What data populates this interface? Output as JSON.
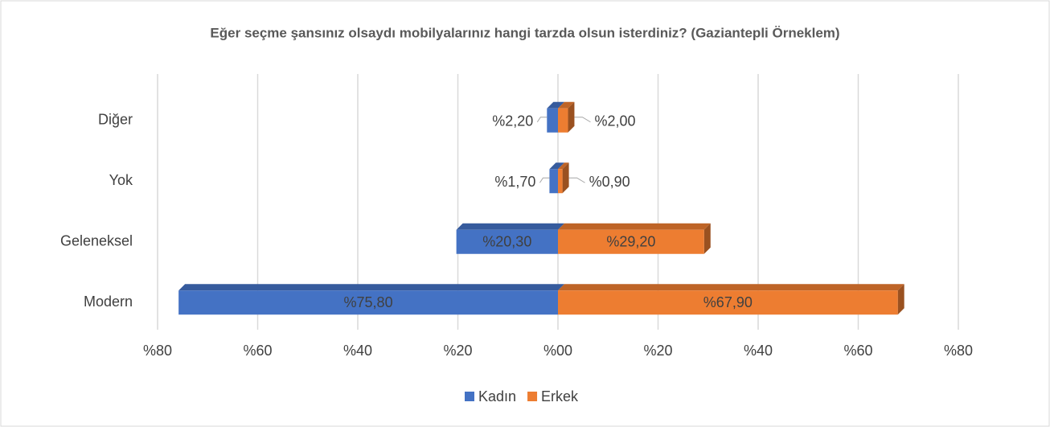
{
  "chart_data": {
    "type": "butterfly-bar",
    "title": "Eğer seçme şansınız olsaydı mobilyalarınız hangi tarzda olsun isterdiniz? (Gaziantepli Örneklem)",
    "categories": [
      "Modern",
      "Geleneksel",
      "Yok",
      "Diğer"
    ],
    "series": [
      {
        "name": "Kadın",
        "color": "#4472c4",
        "values": [
          -75.8,
          -20.3,
          -1.7,
          -2.2
        ],
        "value_labels": [
          "%75,80",
          "%20,30",
          "%1,70",
          "%2,20"
        ]
      },
      {
        "name": "Erkek",
        "color": "#ed7d31",
        "values": [
          67.9,
          29.2,
          0.9,
          2.0
        ],
        "value_labels": [
          "%67,90",
          "%29,20",
          "%0,90",
          "%2,00"
        ]
      }
    ],
    "xlim": [
      -80,
      80
    ],
    "xticks": [
      {
        "value": -80,
        "label": "%80"
      },
      {
        "value": -60,
        "label": "%60"
      },
      {
        "value": -40,
        "label": "%40"
      },
      {
        "value": -20,
        "label": "%20"
      },
      {
        "value": 0,
        "label": "%00"
      },
      {
        "value": 20,
        "label": "%20"
      },
      {
        "value": 40,
        "label": "%40"
      },
      {
        "value": 60,
        "label": "%60"
      },
      {
        "value": 80,
        "label": "%80"
      }
    ],
    "grid": true,
    "legend": "bottom"
  }
}
